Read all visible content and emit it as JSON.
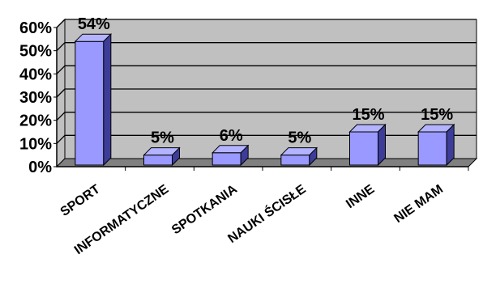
{
  "chart_data": {
    "type": "bar",
    "style": "3d-column",
    "categories": [
      "SPORT",
      "INFORMATYCZNE",
      "SPOTKANIA",
      "NAUKI ŚCISŁE",
      "INNE",
      "NIE MAM"
    ],
    "values": [
      54,
      5,
      6,
      5,
      15,
      15
    ],
    "data_labels": [
      "54%",
      "5%",
      "6%",
      "5%",
      "15%",
      "15%"
    ],
    "y_ticks": [
      "0%",
      "10%",
      "20%",
      "30%",
      "40%",
      "50%",
      "60%"
    ],
    "ylim": [
      0,
      60
    ],
    "grid": true,
    "legend": "none",
    "title": "",
    "xlabel": "",
    "ylabel": "",
    "colors": {
      "bar_front": "#9999ff",
      "bar_top": "#b3b3ff",
      "bar_side": "#3d3d99",
      "plot_back_wall": "#c0c0c0",
      "plot_floor": "#808080",
      "grid": "#000000"
    }
  }
}
